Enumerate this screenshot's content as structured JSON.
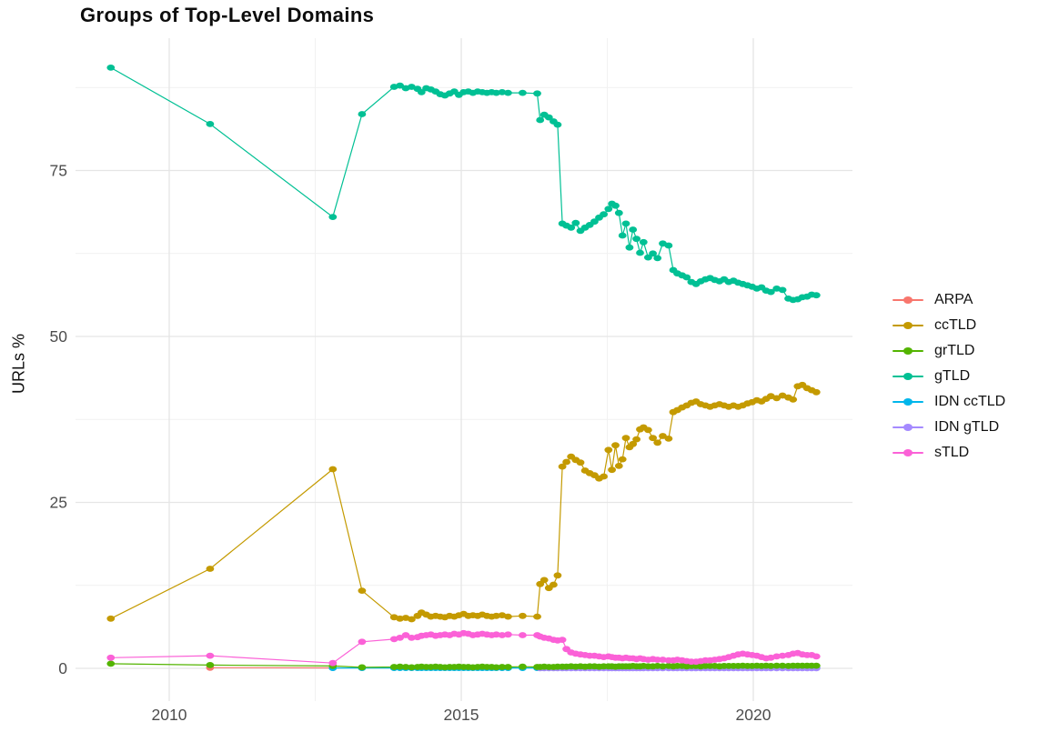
{
  "chart_data": {
    "type": "line",
    "title": "Groups of Top-Level Domains",
    "xlabel": "",
    "ylabel": "URLs %",
    "grid": true,
    "legend_position": "right",
    "x_axis": {
      "ticks": [
        {
          "pos": 2010,
          "label": "2010"
        },
        {
          "pos": 2015,
          "label": "2015"
        },
        {
          "pos": 2020,
          "label": "2020"
        }
      ],
      "minor": [
        2012.5,
        2017.5
      ],
      "range": [
        2008.4,
        2021.7
      ]
    },
    "y_axis": {
      "ticks": [
        {
          "pos": 0,
          "label": "0"
        },
        {
          "pos": 25,
          "label": "25"
        },
        {
          "pos": 50,
          "label": "50"
        },
        {
          "pos": 75,
          "label": "75"
        }
      ],
      "minor": [
        12.5,
        37.5,
        62.5,
        87.5
      ],
      "range": [
        -5,
        95
      ]
    },
    "x_grids": {
      "d1": [
        2013.85,
        2013.95,
        2014.05,
        2014.15,
        2014.25,
        2014.32,
        2014.4,
        2014.48,
        2014.56,
        2014.64,
        2014.72,
        2014.8,
        2014.88,
        2014.96,
        2015.04,
        2015.12,
        2015.2,
        2015.28,
        2015.36,
        2015.44,
        2015.52,
        2015.6,
        2015.7,
        2015.8,
        2016.05,
        2016.3
      ],
      "d2": [
        2016.35,
        2016.42,
        2016.5,
        2016.58,
        2016.65
      ],
      "d3": [
        2016.73,
        2016.8,
        2016.88,
        2016.96,
        2017.04,
        2017.12,
        2017.2,
        2017.28,
        2017.36,
        2017.44,
        2017.52,
        2017.58,
        2017.64,
        2017.7,
        2017.76,
        2017.82,
        2017.88,
        2017.94,
        2018.0,
        2018.06,
        2018.12,
        2018.2,
        2018.28,
        2018.36,
        2018.45,
        2018.55,
        2018.63,
        2018.7,
        2018.78,
        2018.86,
        2018.94,
        2019.02,
        2019.1,
        2019.18,
        2019.26,
        2019.34,
        2019.42,
        2019.5,
        2019.58,
        2019.66,
        2019.74,
        2019.82,
        2019.9,
        2019.98,
        2020.06,
        2020.14,
        2020.22,
        2020.3,
        2020.4,
        2020.5,
        2020.6,
        2020.68,
        2020.76,
        2020.84,
        2020.92,
        2021.0,
        2021.08
      ]
    },
    "series": [
      {
        "name": "ARPA",
        "color": "#F8766D",
        "points": [
          [
            2010.7,
            0.1
          ],
          [
            2012.8,
            0.07
          ]
        ]
      },
      {
        "name": "ccTLD",
        "color": "#C49A00",
        "points": [
          [
            2009,
            7.5
          ],
          [
            2010.7,
            15.0
          ],
          [
            2012.8,
            30.0
          ],
          [
            2013.3,
            11.7
          ]
        ],
        "d1": [
          7.7,
          7.5,
          7.6,
          7.4,
          7.9,
          8.4,
          8.1,
          7.8,
          7.9,
          7.8,
          7.7,
          7.9,
          7.8,
          8.0,
          8.2,
          7.9,
          8.0,
          7.9,
          8.1,
          7.9,
          7.8,
          7.9,
          8.0,
          7.8,
          7.9,
          7.8
        ],
        "d2": [
          12.7,
          13.3,
          12.1,
          12.6,
          14.0
        ],
        "d3": [
          30.4,
          31.1,
          31.9,
          31.4,
          31.0,
          29.8,
          29.4,
          29.1,
          28.6,
          28.9,
          32.9,
          29.9,
          33.6,
          30.5,
          31.5,
          34.7,
          33.3,
          33.8,
          34.5,
          36.0,
          36.3,
          35.9,
          34.7,
          34.0,
          35.0,
          34.6,
          38.6,
          38.9,
          39.3,
          39.6,
          40.0,
          40.2,
          39.8,
          39.6,
          39.4,
          39.6,
          39.8,
          39.6,
          39.4,
          39.6,
          39.4,
          39.6,
          39.9,
          40.1,
          40.4,
          40.2,
          40.6,
          41.0,
          40.7,
          41.1,
          40.8,
          40.5,
          42.5,
          42.7,
          42.2,
          41.9,
          41.6
        ]
      },
      {
        "name": "grTLD",
        "color": "#53B400",
        "points": [
          [
            2009,
            0.7
          ],
          [
            2010.7,
            0.5
          ],
          [
            2012.8,
            0.35
          ],
          [
            2013.3,
            0.15
          ]
        ],
        "d1": [
          0.2,
          0.25,
          0.2,
          0.15,
          0.2,
          0.25,
          0.2,
          0.2,
          0.25,
          0.2,
          0.15,
          0.2,
          0.2,
          0.25,
          0.2,
          0.2,
          0.15,
          0.2,
          0.25,
          0.2,
          0.2,
          0.15,
          0.2,
          0.2,
          0.25,
          0.2
        ],
        "d2": [
          0.2,
          0.25,
          0.2,
          0.2,
          0.25
        ],
        "d3": [
          0.25,
          0.25,
          0.3,
          0.25,
          0.3,
          0.25,
          0.3,
          0.3,
          0.25,
          0.3,
          0.3,
          0.3,
          0.25,
          0.3,
          0.3,
          0.3,
          0.3,
          0.35,
          0.3,
          0.3,
          0.35,
          0.3,
          0.3,
          0.35,
          0.3,
          0.35,
          0.3,
          0.35,
          0.35,
          0.3,
          0.35,
          0.35,
          0.3,
          0.35,
          0.35,
          0.35,
          0.3,
          0.35,
          0.35,
          0.35,
          0.35,
          0.4,
          0.35,
          0.35,
          0.4,
          0.35,
          0.4,
          0.35,
          0.4,
          0.4,
          0.35,
          0.4,
          0.4,
          0.4,
          0.4,
          0.4,
          0.4
        ]
      },
      {
        "name": "gTLD",
        "color": "#00C094",
        "points": [
          [
            2009,
            90.5
          ],
          [
            2010.7,
            82.0
          ],
          [
            2012.8,
            68.0
          ],
          [
            2013.3,
            83.5
          ]
        ],
        "d1": [
          87.6,
          87.8,
          87.4,
          87.6,
          87.3,
          86.8,
          87.4,
          87.2,
          86.9,
          86.5,
          86.3,
          86.6,
          86.9,
          86.4,
          86.8,
          86.9,
          86.7,
          86.9,
          86.8,
          86.7,
          86.8,
          86.7,
          86.8,
          86.7,
          86.7,
          86.6
        ],
        "d2": [
          82.6,
          83.4,
          83.0,
          82.4,
          81.9
        ],
        "d3": [
          67.0,
          66.7,
          66.4,
          67.1,
          65.9,
          66.4,
          66.8,
          67.3,
          67.9,
          68.4,
          69.2,
          70.0,
          69.7,
          68.6,
          65.2,
          67.0,
          63.4,
          66.1,
          64.7,
          62.6,
          64.2,
          61.9,
          62.5,
          61.8,
          64.0,
          63.7,
          60.0,
          59.5,
          59.2,
          58.9,
          58.2,
          57.9,
          58.3,
          58.6,
          58.8,
          58.5,
          58.3,
          58.6,
          58.2,
          58.4,
          58.1,
          57.9,
          57.7,
          57.5,
          57.2,
          57.4,
          56.9,
          56.7,
          57.2,
          57.0,
          55.7,
          55.5,
          55.6,
          55.9,
          56.0,
          56.3,
          56.2
        ]
      },
      {
        "name": "IDN ccTLD",
        "color": "#00B6EB",
        "points": [
          [
            2012.8,
            0.05
          ],
          [
            2013.3,
            0.05
          ]
        ],
        "fill_grids": [
          "d1",
          "d2",
          "d3"
        ],
        "fill_value": 0.05
      },
      {
        "name": "IDN gTLD",
        "color": "#A58AFF",
        "points": [],
        "fill_grids": [
          "d2",
          "d3"
        ],
        "fill_value": 0.02
      },
      {
        "name": "sTLD",
        "color": "#FB61D7",
        "points": [
          [
            2009,
            1.6
          ],
          [
            2010.7,
            1.9
          ],
          [
            2012.8,
            0.8
          ],
          [
            2013.3,
            4.0
          ]
        ],
        "d1": [
          4.4,
          4.6,
          5.0,
          4.6,
          4.7,
          4.9,
          5.0,
          5.1,
          4.9,
          5.0,
          5.1,
          5.0,
          5.2,
          5.1,
          5.3,
          5.2,
          5.0,
          5.1,
          5.2,
          5.1,
          5.0,
          5.1,
          5.0,
          5.1,
          5.0,
          5.0
        ],
        "d2": [
          4.8,
          4.6,
          4.5,
          4.3,
          4.2
        ],
        "d3": [
          4.3,
          2.9,
          2.4,
          2.2,
          2.1,
          2.0,
          1.9,
          1.9,
          1.8,
          1.7,
          1.8,
          1.7,
          1.6,
          1.6,
          1.5,
          1.6,
          1.5,
          1.5,
          1.4,
          1.5,
          1.4,
          1.3,
          1.4,
          1.3,
          1.3,
          1.2,
          1.2,
          1.3,
          1.2,
          1.1,
          1.0,
          1.0,
          1.1,
          1.2,
          1.2,
          1.3,
          1.4,
          1.5,
          1.7,
          1.9,
          2.1,
          2.2,
          2.1,
          2.0,
          1.9,
          1.7,
          1.5,
          1.6,
          1.8,
          1.9,
          2.0,
          2.2,
          2.3,
          2.1,
          2.0,
          2.0,
          1.8
        ]
      }
    ]
  }
}
